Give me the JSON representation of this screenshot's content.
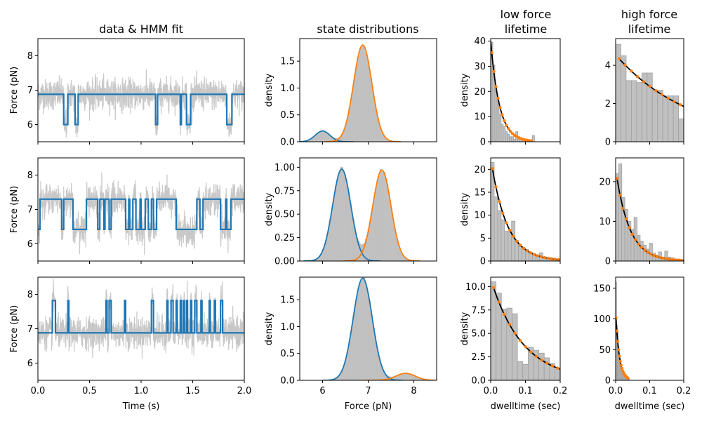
{
  "colors": {
    "histogram": "#c0c0c0",
    "hist_edge": "#a0a0a0",
    "trace_raw": "#c8c8c8",
    "state_low": "#1f77b4",
    "state_high": "#ff7f0e",
    "fit_line": "#000000",
    "fit_points": "#ff7f0e"
  },
  "column_titles": {
    "data": "data & HMM fit",
    "dist": "state distributions",
    "low": [
      "low force",
      "lifetime"
    ],
    "high": [
      "high force",
      "lifetime"
    ]
  },
  "chart_data": [
    {
      "id": "r0_data",
      "row": 0,
      "col": "data",
      "type": "line",
      "title": "data & HMM fit",
      "xlabel": "",
      "ylabel": "Force (pN)",
      "xlim": [
        0,
        2.0
      ],
      "ylim": [
        5.5,
        8.5
      ],
      "xticks": [],
      "yticks": [
        6,
        7,
        8
      ],
      "xticklabels": false,
      "states": [
        6.0,
        6.88
      ],
      "noise": 0.22,
      "hmm_path": {
        "start": 6.88,
        "transitions": [
          [
            0.25,
            6.0
          ],
          [
            0.29,
            6.88
          ],
          [
            0.36,
            6.0
          ],
          [
            0.39,
            6.88
          ],
          [
            1.14,
            6.0
          ],
          [
            1.16,
            6.88
          ],
          [
            1.38,
            6.0
          ],
          [
            1.39,
            6.88
          ],
          [
            1.44,
            6.0
          ],
          [
            1.48,
            6.88
          ],
          [
            1.83,
            6.0
          ],
          [
            1.88,
            6.88
          ]
        ]
      }
    },
    {
      "id": "r0_dist",
      "row": 0,
      "col": "dist",
      "type": "area",
      "title": "state distributions",
      "xlabel": "",
      "ylabel": "density",
      "xlim": [
        5.5,
        8.5
      ],
      "ylim": [
        0,
        1.92
      ],
      "xticks": [
        6,
        7,
        8
      ],
      "xticklabels": false,
      "yticks": [
        0.0,
        0.5,
        1.0,
        1.5
      ],
      "series": [
        {
          "mu": 6.0,
          "sigma": 0.16,
          "peak": 0.2
        },
        {
          "mu": 6.88,
          "sigma": 0.2,
          "peak": 1.8
        }
      ]
    },
    {
      "id": "r0_low",
      "row": 0,
      "col": "low",
      "type": "bar",
      "title": "low force lifetime",
      "xlabel": "",
      "ylabel": "density",
      "xlim": [
        0,
        0.2
      ],
      "ylim": [
        0,
        41
      ],
      "xticks": [
        0.0,
        0.1,
        0.2
      ],
      "xticklabels": false,
      "yticks": [
        0,
        10,
        20,
        30,
        40
      ],
      "bin_edges": [
        0.0,
        0.006,
        0.012,
        0.018,
        0.024,
        0.03,
        0.036,
        0.042,
        0.048,
        0.054,
        0.06,
        0.066,
        0.072,
        0.078,
        0.084,
        0.09,
        0.096,
        0.102,
        0.108,
        0.114,
        0.12,
        0.126
      ],
      "bin_values": [
        39.5,
        30.5,
        22,
        17,
        11,
        7,
        6,
        4,
        3,
        2,
        2,
        1,
        4,
        2,
        1,
        1,
        0,
        0,
        0,
        0,
        2.5
      ],
      "fit": {
        "A": 40,
        "k": 40,
        "x_end": 0.12
      },
      "fit_points": {
        "x_start": 0.003,
        "x_end": 0.12,
        "step": 0.006
      }
    },
    {
      "id": "r0_high",
      "row": 0,
      "col": "high",
      "type": "bar",
      "title": "high force lifetime",
      "xlabel": "",
      "ylabel": "",
      "xlim": [
        0,
        0.2
      ],
      "ylim": [
        0,
        5.4
      ],
      "xticks": [
        0.0,
        0.1,
        0.2
      ],
      "xticklabels": false,
      "yticks": [
        0,
        2,
        4
      ],
      "bin_edges": [
        0.0,
        0.0154,
        0.0308,
        0.0462,
        0.0616,
        0.077,
        0.0924,
        0.1078,
        0.1232,
        0.1386,
        0.154,
        0.1694,
        0.1848,
        0.2002
      ],
      "bin_values": [
        5.1,
        4.5,
        3.2,
        3.2,
        3.1,
        3.6,
        3.6,
        2.7,
        2.7,
        2.4,
        2.4,
        2.4,
        1.2
      ],
      "fit": {
        "A": 4.55,
        "k": 4.5,
        "x_start": 0.008,
        "x_end": 0.2
      },
      "fit_points": {
        "x_start": 0.01,
        "x_end": 0.2,
        "step": 0.018
      }
    },
    {
      "id": "r1_data",
      "row": 1,
      "col": "data",
      "type": "line",
      "title": "",
      "xlabel": "",
      "ylabel": "Force (pN)",
      "xlim": [
        0,
        2.0
      ],
      "ylim": [
        5.5,
        8.5
      ],
      "xticks": [],
      "yticks": [
        6,
        7,
        8
      ],
      "xticklabels": false,
      "states": [
        6.42,
        7.3
      ],
      "noise": 0.22,
      "hmm_path": {
        "start": 6.42,
        "transitions": [
          [
            0.02,
            7.3
          ],
          [
            0.23,
            6.42
          ],
          [
            0.25,
            7.3
          ],
          [
            0.34,
            6.42
          ],
          [
            0.47,
            7.3
          ],
          [
            0.58,
            6.42
          ],
          [
            0.6,
            7.3
          ],
          [
            0.64,
            6.42
          ],
          [
            0.65,
            7.3
          ],
          [
            0.69,
            6.42
          ],
          [
            0.71,
            7.3
          ],
          [
            0.85,
            6.42
          ],
          [
            0.88,
            7.3
          ],
          [
            0.89,
            6.42
          ],
          [
            0.92,
            7.3
          ],
          [
            0.95,
            6.42
          ],
          [
            0.99,
            7.3
          ],
          [
            1.0,
            6.42
          ],
          [
            1.04,
            7.3
          ],
          [
            1.07,
            6.42
          ],
          [
            1.1,
            7.3
          ],
          [
            1.12,
            6.42
          ],
          [
            1.15,
            7.3
          ],
          [
            1.34,
            6.42
          ],
          [
            1.54,
            7.3
          ],
          [
            1.57,
            6.42
          ],
          [
            1.6,
            7.3
          ],
          [
            1.77,
            6.42
          ],
          [
            1.82,
            7.3
          ],
          [
            1.83,
            6.42
          ],
          [
            1.87,
            7.3
          ]
        ]
      }
    },
    {
      "id": "r1_dist",
      "row": 1,
      "col": "dist",
      "type": "area",
      "title": "",
      "xlabel": "",
      "ylabel": "density",
      "xlim": [
        5.5,
        8.5
      ],
      "ylim": [
        0,
        1.1
      ],
      "xticks": [
        6,
        7,
        8
      ],
      "xticklabels": false,
      "yticks": [
        0.0,
        0.25,
        0.5,
        0.75,
        1.0
      ],
      "series": [
        {
          "mu": 6.42,
          "sigma": 0.2,
          "peak": 0.98
        },
        {
          "mu": 7.3,
          "sigma": 0.2,
          "peak": 0.97
        }
      ]
    },
    {
      "id": "r1_low",
      "row": 1,
      "col": "low",
      "type": "bar",
      "title": "",
      "xlabel": "",
      "ylabel": "density",
      "xlim": [
        0,
        0.2
      ],
      "ylim": [
        0,
        22.5
      ],
      "xticks": [
        0.0,
        0.1,
        0.2
      ],
      "xticklabels": false,
      "yticks": [
        0,
        5,
        10,
        15,
        20
      ],
      "bin_edges": [
        0.0,
        0.01,
        0.02,
        0.03,
        0.04,
        0.05,
        0.06,
        0.07,
        0.08,
        0.09,
        0.1,
        0.11,
        0.12,
        0.13,
        0.14,
        0.15,
        0.16,
        0.17,
        0.18,
        0.19,
        0.2
      ],
      "bin_values": [
        21.5,
        14,
        11,
        9,
        6.5,
        6.3,
        8.7,
        4.5,
        3.2,
        2.8,
        2.5,
        1.8,
        1.6,
        1.1,
        1.8,
        0.9,
        0.6,
        0.7,
        0.4,
        0.4
      ],
      "fit": {
        "A": 22.5,
        "k": 22,
        "x_start": 0.005,
        "x_end": 0.2
      },
      "fit_points": {
        "x_start": 0.005,
        "x_end": 0.2,
        "step": 0.01
      }
    },
    {
      "id": "r1_high",
      "row": 1,
      "col": "high",
      "type": "bar",
      "title": "",
      "xlabel": "",
      "ylabel": "",
      "xlim": [
        0,
        0.2
      ],
      "ylim": [
        0,
        26
      ],
      "xticks": [
        0.0,
        0.1,
        0.2
      ],
      "xticklabels": false,
      "yticks": [
        0,
        10,
        20
      ],
      "bin_edges": [
        0.0,
        0.009,
        0.018,
        0.027,
        0.036,
        0.045,
        0.054,
        0.063,
        0.072,
        0.081,
        0.09,
        0.099,
        0.108,
        0.117,
        0.126,
        0.135,
        0.144,
        0.153,
        0.162,
        0.171,
        0.18,
        0.189,
        0.198
      ],
      "bin_values": [
        22,
        24.5,
        16,
        13,
        10,
        8,
        11,
        6.5,
        5,
        4,
        3,
        4.5,
        2,
        1.5,
        2.3,
        1,
        2.5,
        1,
        0.8,
        0.5,
        0.5,
        0.3
      ],
      "fit": {
        "A": 23,
        "k": 25,
        "x_start": 0.004,
        "x_end": 0.2
      },
      "fit_points": {
        "x_start": 0.004,
        "x_end": 0.2,
        "step": 0.009
      }
    },
    {
      "id": "r2_data",
      "row": 2,
      "col": "data",
      "type": "line",
      "title": "",
      "xlabel": "Time (s)",
      "ylabel": "Force (pN)",
      "xlim": [
        0,
        2.0
      ],
      "ylim": [
        5.5,
        8.5
      ],
      "xticks": [
        0.0,
        0.5,
        1.0,
        1.5,
        2.0
      ],
      "yticks": [
        6,
        7,
        8
      ],
      "xticklabels": true,
      "states": [
        6.88,
        7.82
      ],
      "noise": 0.22,
      "hmm_path": {
        "start": 6.88,
        "transitions": [
          [
            0.14,
            7.82
          ],
          [
            0.17,
            6.88
          ],
          [
            0.29,
            7.82
          ],
          [
            0.3,
            6.88
          ],
          [
            0.66,
            7.82
          ],
          [
            0.67,
            6.88
          ],
          [
            0.69,
            7.82
          ],
          [
            0.71,
            6.88
          ],
          [
            0.84,
            7.82
          ],
          [
            0.85,
            6.88
          ],
          [
            1.1,
            7.82
          ],
          [
            1.12,
            6.88
          ],
          [
            1.25,
            7.82
          ],
          [
            1.26,
            6.88
          ],
          [
            1.29,
            7.82
          ],
          [
            1.31,
            6.88
          ],
          [
            1.34,
            7.82
          ],
          [
            1.35,
            6.88
          ],
          [
            1.38,
            7.82
          ],
          [
            1.39,
            6.88
          ],
          [
            1.41,
            7.82
          ],
          [
            1.42,
            6.88
          ],
          [
            1.44,
            7.82
          ],
          [
            1.45,
            6.88
          ],
          [
            1.48,
            7.82
          ],
          [
            1.49,
            6.88
          ],
          [
            1.52,
            7.82
          ],
          [
            1.54,
            6.88
          ],
          [
            1.58,
            7.82
          ],
          [
            1.59,
            6.88
          ],
          [
            1.66,
            7.82
          ],
          [
            1.67,
            6.88
          ],
          [
            1.71,
            7.82
          ],
          [
            1.72,
            6.88
          ],
          [
            1.77,
            7.82
          ],
          [
            1.79,
            6.88
          ]
        ]
      }
    },
    {
      "id": "r2_dist",
      "row": 2,
      "col": "dist",
      "type": "area",
      "title": "",
      "xlabel": "Force (pN)",
      "ylabel": "density",
      "xlim": [
        5.5,
        8.5
      ],
      "ylim": [
        0,
        1.92
      ],
      "xticks": [
        6,
        7,
        8
      ],
      "xticklabels": true,
      "yticks": [
        0.0,
        0.5,
        1.0,
        1.5
      ],
      "series": [
        {
          "mu": 6.88,
          "sigma": 0.21,
          "peak": 1.9
        },
        {
          "mu": 7.82,
          "sigma": 0.21,
          "peak": 0.13
        }
      ]
    },
    {
      "id": "r2_low",
      "row": 2,
      "col": "low",
      "type": "bar",
      "title": "",
      "xlabel": "dwelltime (sec)",
      "ylabel": "density",
      "xlim": [
        0,
        0.2
      ],
      "ylim": [
        0,
        11
      ],
      "xticks": [
        0.0,
        0.1,
        0.2
      ],
      "xticklabels": true,
      "yticks": [
        0.0,
        2.5,
        5.0,
        7.5,
        10.0
      ],
      "bin_edges": [
        0.0,
        0.0154,
        0.0308,
        0.0462,
        0.0616,
        0.077,
        0.0924,
        0.1078,
        0.1232,
        0.1386,
        0.154,
        0.1694,
        0.1848,
        0.2002
      ],
      "bin_values": [
        10.5,
        9.3,
        7.6,
        7.7,
        7.1,
        2,
        1.7,
        3.5,
        3.2,
        2.9,
        2.4,
        1.8,
        1.2
      ],
      "fit": {
        "A": 10.8,
        "k": 11,
        "x_start": 0.008,
        "x_end": 0.2
      },
      "fit_points": {
        "x_start": 0.008,
        "x_end": 0.2,
        "step": 0.0154
      }
    },
    {
      "id": "r2_high",
      "row": 2,
      "col": "high",
      "type": "bar",
      "title": "",
      "xlabel": "dwelltime (sec)",
      "ylabel": "",
      "xlim": [
        0,
        0.2
      ],
      "ylim": [
        0,
        168
      ],
      "xticks": [
        0.0,
        0.1,
        0.2
      ],
      "xticklabels": true,
      "yticks": [
        0,
        50,
        100,
        150
      ],
      "bin_edges": [
        0.0,
        0.0025,
        0.005,
        0.0075,
        0.01,
        0.0125,
        0.015,
        0.0175,
        0.02,
        0.0225,
        0.025,
        0.0275,
        0.03,
        0.0325,
        0.035,
        0.0375,
        0.04
      ],
      "bin_values": [
        160,
        90,
        80,
        55,
        42,
        35,
        25,
        20,
        14,
        12,
        9,
        7,
        5,
        3,
        2,
        2
      ],
      "fit": {
        "A": 112,
        "k": 95,
        "x_start": 0.001,
        "x_end": 0.04
      },
      "fit_points": {
        "x_start": 0.001,
        "x_end": 0.038,
        "step": 0.0025
      }
    }
  ]
}
